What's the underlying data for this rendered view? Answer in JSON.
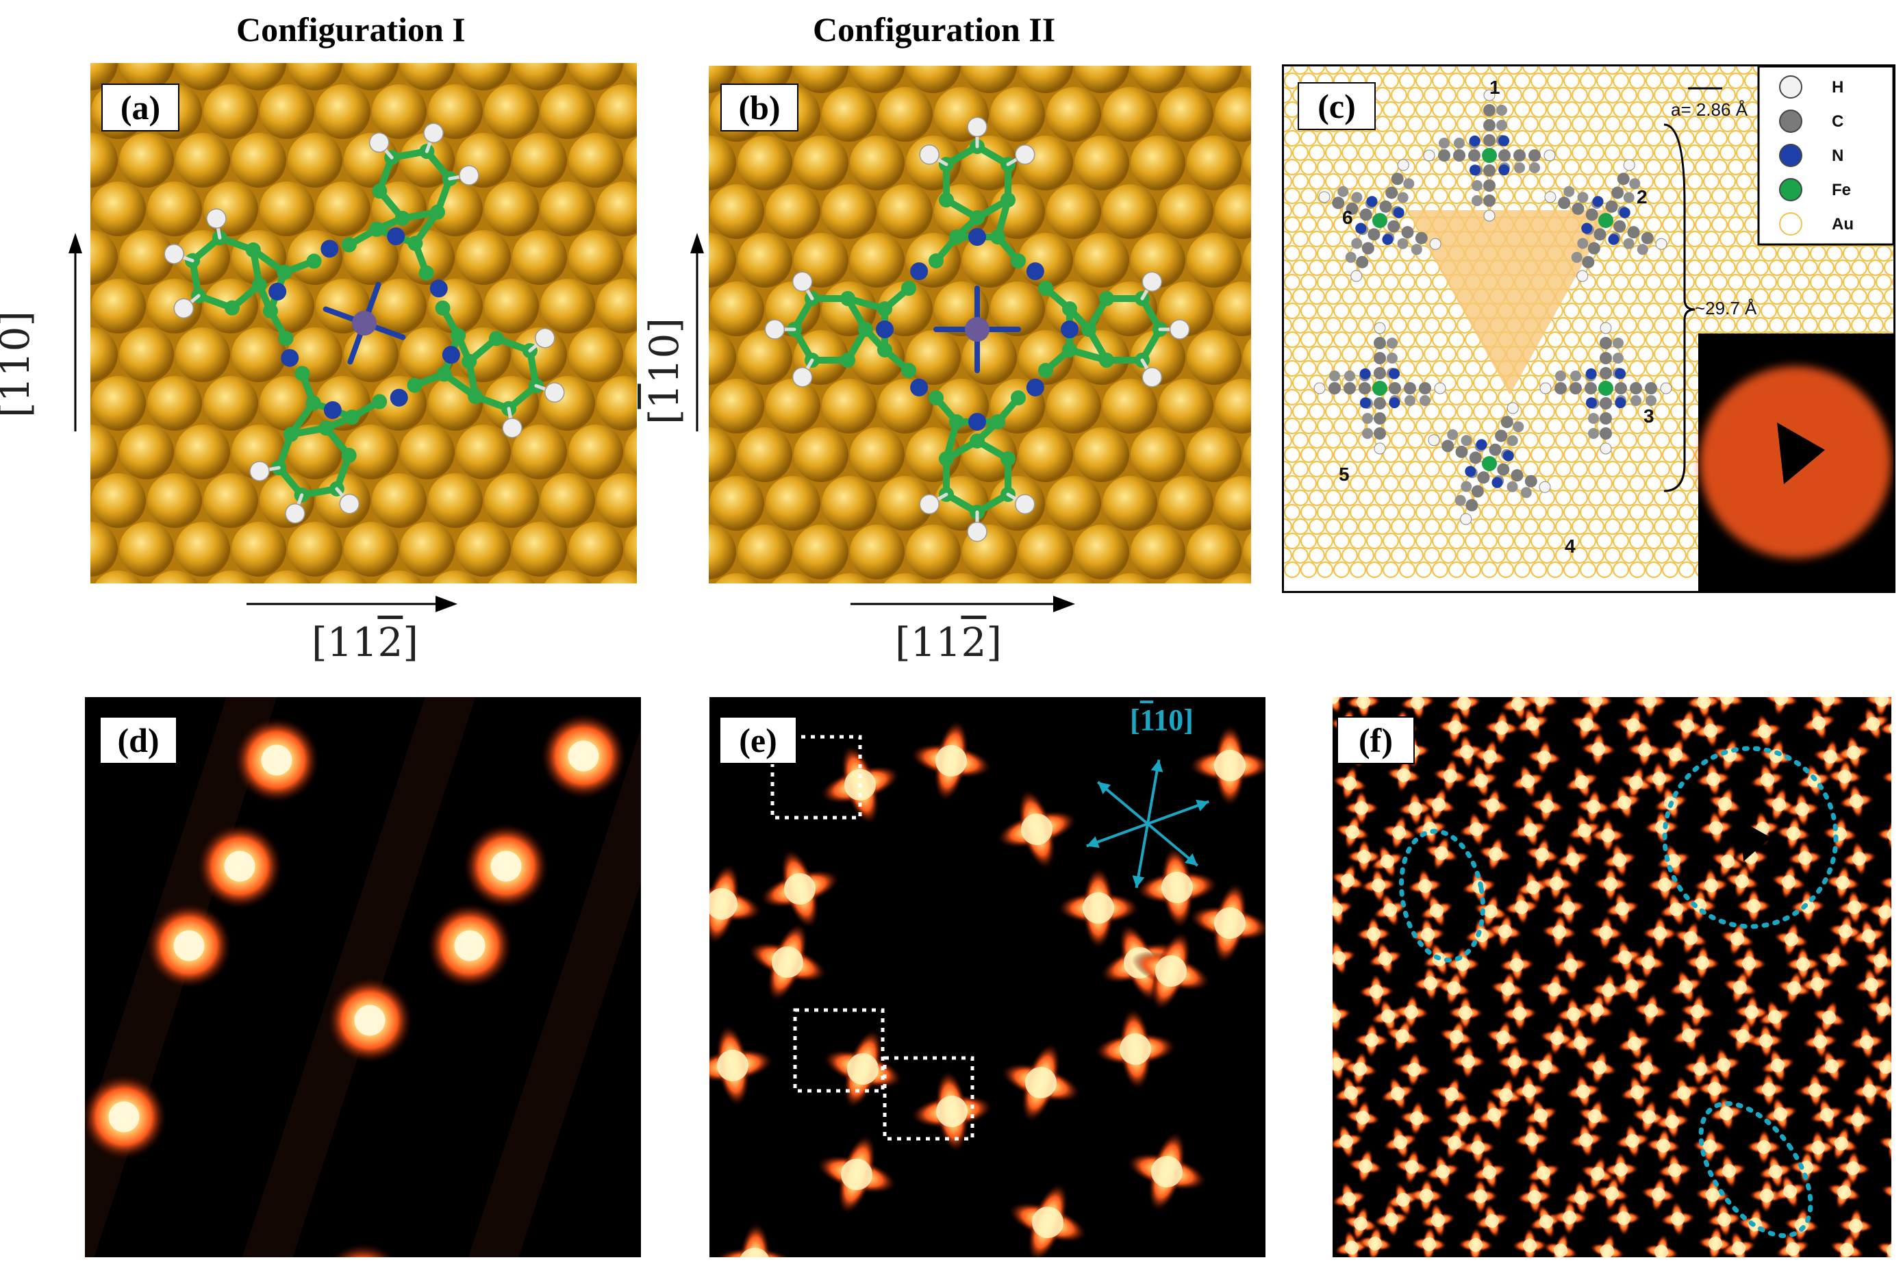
{
  "figure": {
    "config_titles": [
      "Configuration I",
      "Configuration II"
    ],
    "panels": [
      {
        "label": "(a)"
      },
      {
        "label": "(b)"
      },
      {
        "label": "(c)"
      },
      {
        "label": "(d)"
      },
      {
        "label": "(e)"
      },
      {
        "label": "(f)"
      }
    ],
    "axes": {
      "vertical_prefix": "[",
      "vertical_bar_digit": "1",
      "vertical_suffix": "10]",
      "horizontal_prefix": "[11",
      "horizontal_bar_digit": "2",
      "horizontal_suffix": "]"
    },
    "panel_c": {
      "scale_text": "a= 2.86 Å",
      "distance_text": "~29.7 Å",
      "molecule_numbers": [
        "1",
        "2",
        "3",
        "4",
        "5",
        "6"
      ],
      "legend": [
        {
          "symbol": "H",
          "color": "#f2f2f2"
        },
        {
          "symbol": "C",
          "color": "#7a7a7a"
        },
        {
          "symbol": "N",
          "color": "#1f3fa8"
        },
        {
          "symbol": "Fe",
          "color": "#1aa34a"
        },
        {
          "symbol": "Au",
          "color": "#ffffff"
        }
      ]
    },
    "panel_e": {
      "direction_label_prefix": "[",
      "direction_label_bar": "1",
      "direction_label_suffix": "10]"
    },
    "colors": {
      "gold": "#e3a51c",
      "carbon_green": "#2aa84a",
      "nitrogen_blue": "#1f3fa8",
      "iron_purple": "#6a5a9a",
      "stm_bright": "#fff3b0",
      "stm_mid": "#ff5a1a",
      "stm_dark": "#000000",
      "cyan_annotation": "#1aa7c4"
    }
  }
}
